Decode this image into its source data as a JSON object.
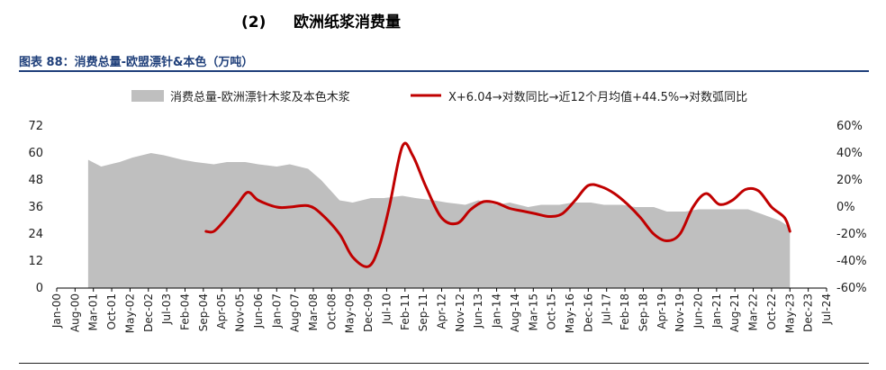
{
  "section": {
    "number": "(2)",
    "title": "欧洲纸浆消费量"
  },
  "figure_title": "图表 88：消费总量-欧盟漂针&本色（万吨）",
  "chart_data": {
    "type": "area",
    "title": "",
    "xlabel": "",
    "ylabel": "",
    "ylim": [
      0,
      72
    ],
    "y2lim": [
      -60,
      60
    ],
    "y_ticks": [
      0,
      12,
      24,
      36,
      48,
      60,
      72
    ],
    "y2_ticks": [
      "-60%",
      "-40%",
      "-20%",
      "0%",
      "20%",
      "40%",
      "60%"
    ],
    "x_range": [
      "2000-01",
      "2024-07"
    ],
    "x_ticks": [
      "Jan-00",
      "Aug-00",
      "Mar-01",
      "Oct-01",
      "May-02",
      "Dec-02",
      "Jul-03",
      "Feb-04",
      "Sep-04",
      "Apr-05",
      "Nov-05",
      "Jun-06",
      "Jan-07",
      "Aug-07",
      "Mar-08",
      "Oct-08",
      "May-09",
      "Dec-09",
      "Jul-10",
      "Feb-11",
      "Sep-11",
      "Apr-12",
      "Nov-12",
      "Jun-13",
      "Jan-14",
      "Aug-14",
      "Mar-15",
      "Oct-15",
      "May-16",
      "Dec-16",
      "Jul-17",
      "Feb-18",
      "Sep-18",
      "Apr-19",
      "Nov-19",
      "Jun-20",
      "Jan-21",
      "Aug-21",
      "Mar-22",
      "Oct-22",
      "May-23",
      "Dec-23",
      "Jul-24"
    ],
    "legend_position": "top",
    "grid": false,
    "series": [
      {
        "name": "消费总量-欧洲漂针木浆及本色木浆",
        "kind": "area",
        "axis": "left",
        "color": "#bfbfbf",
        "x": [
          "2001-01",
          "2001-06",
          "2002-01",
          "2002-06",
          "2003-01",
          "2003-06",
          "2004-01",
          "2004-06",
          "2005-01",
          "2005-06",
          "2006-01",
          "2006-06",
          "2007-01",
          "2007-06",
          "2008-01",
          "2008-06",
          "2009-01",
          "2009-06",
          "2010-01",
          "2010-06",
          "2011-01",
          "2011-06",
          "2012-01",
          "2012-06",
          "2013-01",
          "2013-06",
          "2014-01",
          "2014-06",
          "2015-01",
          "2015-06",
          "2016-01",
          "2016-06",
          "2017-01",
          "2017-06",
          "2018-01",
          "2018-06",
          "2019-01",
          "2019-06",
          "2020-01",
          "2020-06",
          "2021-01",
          "2021-06",
          "2022-01",
          "2022-06",
          "2023-01",
          "2023-05"
        ],
        "values": [
          57,
          54,
          56,
          58,
          60,
          59,
          57,
          56,
          55,
          56,
          56,
          55,
          54,
          55,
          53,
          48,
          39,
          38,
          40,
          40,
          41,
          40,
          39,
          38,
          37,
          39,
          37,
          38,
          36,
          37,
          37,
          38,
          38,
          37,
          37,
          36,
          36,
          34,
          34,
          35,
          35,
          35,
          35,
          33,
          30,
          27
        ]
      },
      {
        "name": "X+6.04→对数同比→近12个月均值+44.5%→对数弧同比",
        "kind": "line",
        "axis": "right",
        "color": "#c00000",
        "x": [
          "2004-10",
          "2005-01",
          "2005-05",
          "2005-10",
          "2006-02",
          "2006-06",
          "2007-01",
          "2007-06",
          "2008-01",
          "2008-06",
          "2009-01",
          "2009-06",
          "2009-12",
          "2010-04",
          "2010-08",
          "2011-01",
          "2011-05",
          "2011-10",
          "2012-04",
          "2012-10",
          "2013-03",
          "2013-08",
          "2014-01",
          "2014-06",
          "2014-11",
          "2015-04",
          "2015-09",
          "2016-02",
          "2016-07",
          "2016-12",
          "2017-05",
          "2017-10",
          "2018-03",
          "2018-08",
          "2019-01",
          "2019-06",
          "2019-11",
          "2020-04",
          "2020-09",
          "2021-02",
          "2021-07",
          "2021-12",
          "2022-05",
          "2022-10",
          "2023-03",
          "2023-05"
        ],
        "values": [
          -18,
          -18,
          -10,
          2,
          11,
          5,
          0,
          0,
          1,
          -5,
          -20,
          -37,
          -44,
          -30,
          0,
          45,
          38,
          15,
          -8,
          -12,
          -2,
          4,
          3,
          -1,
          -3,
          -5,
          -7,
          -5,
          5,
          16,
          15,
          10,
          2,
          -8,
          -20,
          -25,
          -20,
          0,
          10,
          2,
          5,
          13,
          12,
          0,
          -8,
          -18
        ]
      }
    ]
  }
}
